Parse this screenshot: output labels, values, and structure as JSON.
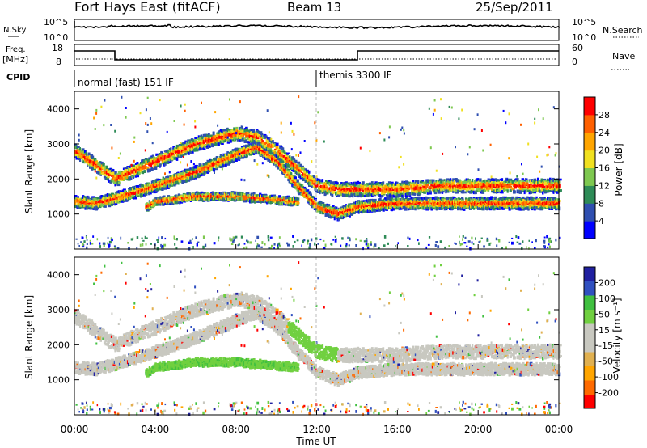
{
  "header": {
    "station": "Fort Hays East (fitACF)",
    "beam": "Beam 13",
    "date": "25/Sep/2011"
  },
  "summary_panels": {
    "nsky_label": "N.Sky",
    "nsky_ticks": [
      "10^5",
      "10^0"
    ],
    "nsearch_label": "N.Search",
    "nsearch_ticks": [
      "10^5",
      "10^0"
    ],
    "freq_label_line1": "Freq.",
    "freq_label_line2": "[MHz]",
    "freq_ticks": [
      "18",
      "8"
    ],
    "nave_label": "Nave",
    "nave_ticks": [
      "60",
      "0"
    ],
    "cpid_label": "CPID",
    "cpid_modes": [
      {
        "label": "normal (fast) 151 IF",
        "start_hour": 0
      },
      {
        "label": "themis 3300 IF",
        "start_hour": 12
      }
    ]
  },
  "colors": {
    "power_scale": [
      "#0000ff",
      "#2f4fb0",
      "#2e8b57",
      "#7ec850",
      "#f0e020",
      "#ffa500",
      "#ff6000",
      "#ff0000"
    ],
    "velocity_scale": [
      "#ff0000",
      "#ff6a00",
      "#ffa500",
      "#e0b050",
      "#c8c8c0",
      "#c8c8c0",
      "#70d040",
      "#40c040",
      "#3050c0",
      "#2020a0"
    ]
  },
  "chart_data": [
    {
      "type": "heatmap",
      "panel": "power",
      "ylabel": "Slant Range [km]",
      "ylim": [
        0,
        4500
      ],
      "yticks": [
        "1000",
        "2000",
        "3000",
        "4000"
      ],
      "xlim": [
        0,
        24
      ],
      "colorbar_label": "Power [dB]",
      "colorbar_ticks": [
        "4",
        "8",
        "12",
        "16",
        "20",
        "24",
        "28"
      ],
      "echo_bands": [
        {
          "name": "lower band",
          "points": [
            [
              0,
              1350
            ],
            [
              1,
              1300
            ],
            [
              2,
              1450
            ],
            [
              4,
              1800
            ],
            [
              6,
              2200
            ],
            [
              8,
              2700
            ],
            [
              9,
              2900
            ],
            [
              10,
              2500
            ],
            [
              11,
              1800
            ],
            [
              12,
              1200
            ],
            [
              13,
              1000
            ],
            [
              14,
              1200
            ],
            [
              16,
              1300
            ],
            [
              18,
              1300
            ],
            [
              20,
              1300
            ],
            [
              22,
              1300
            ],
            [
              24,
              1300
            ]
          ]
        },
        {
          "name": "upper band",
          "points": [
            [
              0,
              2800
            ],
            [
              2,
              2000
            ],
            [
              4,
              2500
            ],
            [
              6,
              3000
            ],
            [
              8,
              3300
            ],
            [
              9,
              3200
            ],
            [
              10,
              2800
            ],
            [
              11,
              2300
            ],
            [
              12,
              1800
            ],
            [
              13,
              1700
            ],
            [
              14,
              1700
            ],
            [
              16,
              1700
            ],
            [
              18,
              1800
            ],
            [
              20,
              1800
            ],
            [
              22,
              1800
            ],
            [
              24,
              1800
            ]
          ]
        },
        {
          "name": "mid band",
          "points": [
            [
              3.5,
              1200
            ],
            [
              4,
              1350
            ],
            [
              6,
              1500
            ],
            [
              8,
              1500
            ],
            [
              10,
              1400
            ],
            [
              11,
              1350
            ]
          ]
        }
      ]
    },
    {
      "type": "heatmap",
      "panel": "velocity",
      "ylabel": "Slant Range [km]",
      "ylim": [
        0,
        4500
      ],
      "yticks": [
        "1000",
        "2000",
        "3000",
        "4000"
      ],
      "xlim": [
        0,
        24
      ],
      "xticks": [
        "00:00",
        "04:00",
        "08:00",
        "12:00",
        "16:00",
        "20:00",
        "00:00"
      ],
      "xlabel": "Time UT",
      "colorbar_label": "Velocity [m s⁻¹]",
      "colorbar_ticks": [
        "200",
        "100",
        "50",
        "15",
        "-15",
        "-50",
        "-100",
        "-200"
      ]
    }
  ]
}
